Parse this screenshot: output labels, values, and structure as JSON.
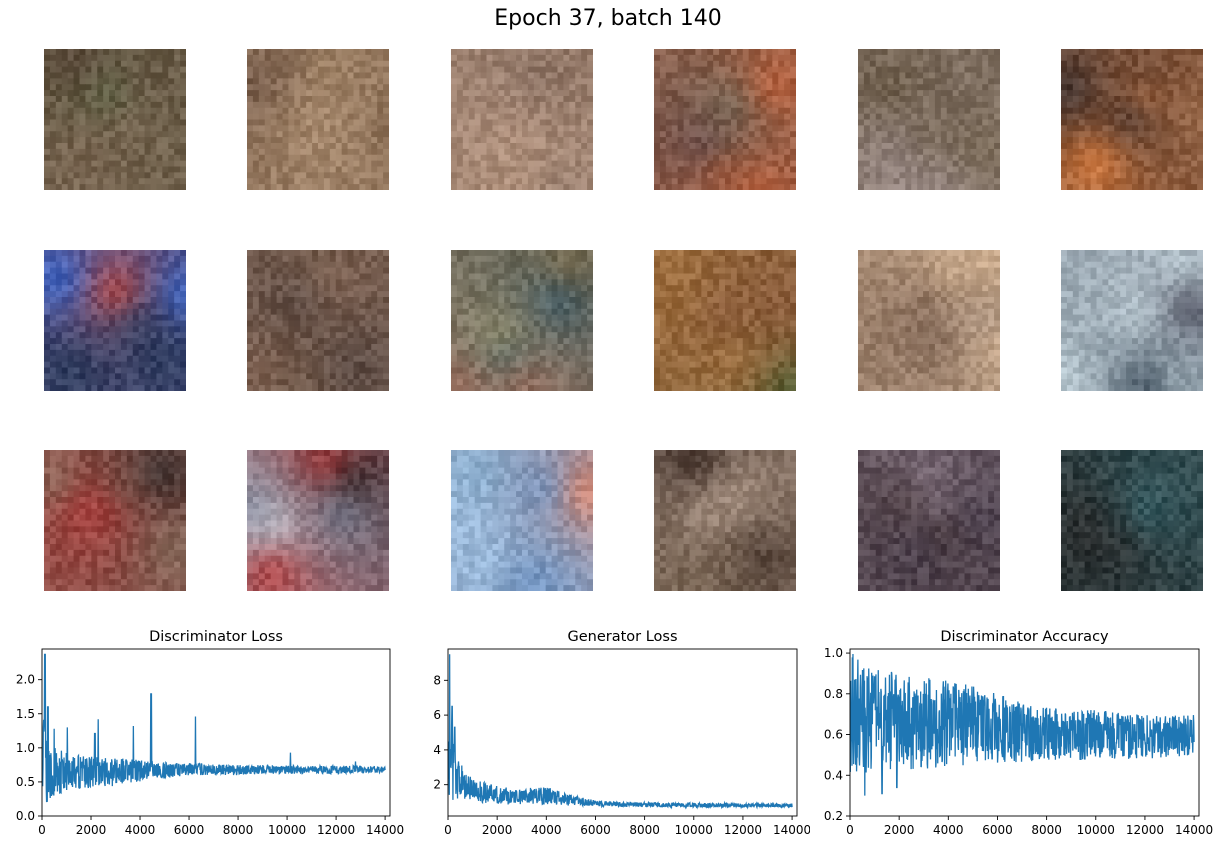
{
  "suptitle": "Epoch 37, batch 140",
  "samples": [
    {
      "colors": [
        "#6b5a48",
        "#7a6652",
        "#4f5a3a",
        "#5c4a3c"
      ]
    },
    {
      "colors": [
        "#8a6e55",
        "#a88a6e",
        "#6e5444",
        "#b89a78"
      ]
    },
    {
      "colors": [
        "#9a8070",
        "#b4947e",
        "#7e6658",
        "#a98a78"
      ]
    },
    {
      "colors": [
        "#6e6a5a",
        "#4e3a4a",
        "#c0603a",
        "#7c8a6a"
      ]
    },
    {
      "colors": [
        "#6a5a46",
        "#9a8a86",
        "#4a3a30",
        "#7a6a56"
      ]
    },
    {
      "colors": [
        "#c08a5a",
        "#3a3030",
        "#e08040",
        "#a07050"
      ]
    },
    {
      "colors": [
        "#3a6ad0",
        "#5a8ae0",
        "#2a3a5a",
        "#d04a3a"
      ]
    },
    {
      "colors": [
        "#6a5444",
        "#3a2a24",
        "#8a6a5a",
        "#5a4a44"
      ]
    },
    {
      "colors": [
        "#7a6a4a",
        "#3a5a6a",
        "#9a6a5a",
        "#b0a06a"
      ]
    },
    {
      "colors": [
        "#6a6a3a",
        "#8a5a3a",
        "#4a5a30",
        "#a07040"
      ]
    },
    {
      "colors": [
        "#b09a8a",
        "#7a6050",
        "#d0b090",
        "#5a4a3a"
      ]
    },
    {
      "colors": [
        "#1a2a3a",
        "#3a5a6a",
        "#c0d0d8",
        "#4a4a5a"
      ]
    },
    {
      "colors": [
        "#6a5044",
        "#b03a3a",
        "#2a2a2a",
        "#8a7060"
      ]
    },
    {
      "colors": [
        "#d8e0e8",
        "#b03030",
        "#1a1a1a",
        "#7a8aa0"
      ]
    },
    {
      "colors": [
        "#8ab0d0",
        "#a0c0e0",
        "#e08060",
        "#6a90c0"
      ]
    },
    {
      "colors": [
        "#7a6654",
        "#a08a78",
        "#3a2a24",
        "#b09a8a"
      ]
    },
    {
      "colors": [
        "#6a6070",
        "#4a4050",
        "#3a2a2a",
        "#8a7a88"
      ]
    },
    {
      "colors": [
        "#3a3a4a",
        "#4ab0c0",
        "#6a5a6a",
        "#2a2a2a"
      ]
    }
  ],
  "chart_data": [
    {
      "type": "line",
      "title": "Discriminator Loss",
      "color": "#1f77b4",
      "xlim": [
        0,
        14200
      ],
      "ylim": [
        0,
        2.45
      ],
      "xticks": [
        0,
        2000,
        4000,
        6000,
        8000,
        10000,
        12000,
        14000
      ],
      "yticks": [
        0.0,
        0.5,
        1.0,
        1.5,
        2.0
      ],
      "ytick_labels": [
        "0.0",
        "0.5",
        "1.0",
        "1.5",
        "2.0"
      ],
      "x": [
        0,
        80,
        150,
        250,
        400,
        600,
        900,
        1300,
        1800,
        2500,
        3200,
        4000,
        5000,
        6000,
        7000,
        8000,
        9000,
        10000,
        11000,
        12000,
        13000,
        14200
      ],
      "y_upper": [
        0.9,
        1.9,
        1.2,
        1.1,
        1.0,
        1.0,
        0.95,
        0.9,
        0.9,
        0.85,
        0.85,
        0.82,
        0.8,
        0.78,
        0.76,
        0.75,
        0.75,
        0.74,
        0.74,
        0.74,
        0.74,
        0.73
      ],
      "y_lower": [
        0.3,
        0.05,
        0.1,
        0.2,
        0.25,
        0.3,
        0.35,
        0.38,
        0.4,
        0.42,
        0.45,
        0.5,
        0.55,
        0.6,
        0.6,
        0.6,
        0.62,
        0.62,
        0.62,
        0.62,
        0.63,
        0.63
      ],
      "spikes": [
        [
          120,
          2.37
        ],
        [
          230,
          1.6
        ],
        [
          500,
          1.28
        ],
        [
          1000,
          1.3
        ],
        [
          1350,
          1.3
        ],
        [
          2150,
          1.22
        ],
        [
          2300,
          1.42
        ],
        [
          3700,
          1.32
        ],
        [
          4450,
          1.8
        ],
        [
          5000,
          1.0
        ],
        [
          6250,
          1.46
        ],
        [
          10100,
          0.93
        ],
        [
          12800,
          0.8
        ]
      ]
    },
    {
      "type": "line",
      "title": "Generator Loss",
      "color": "#1f77b4",
      "xlim": [
        0,
        14200
      ],
      "ylim": [
        0.2,
        9.8
      ],
      "xticks": [
        0,
        2000,
        4000,
        6000,
        8000,
        10000,
        12000,
        14000
      ],
      "yticks": [
        2,
        4,
        6,
        8
      ],
      "ytick_labels": [
        "2",
        "4",
        "6",
        "8"
      ],
      "x": [
        0,
        60,
        120,
        200,
        300,
        500,
        800,
        1200,
        1800,
        2500,
        3200,
        4000,
        5000,
        6000,
        7000,
        8000,
        9000,
        10000,
        11000,
        12000,
        13000,
        14200
      ],
      "y_upper": [
        3.0,
        9.5,
        7.0,
        5.0,
        4.2,
        3.2,
        2.6,
        2.3,
        2.0,
        1.8,
        1.8,
        1.9,
        1.4,
        1.1,
        1.0,
        1.0,
        0.95,
        0.95,
        0.95,
        0.92,
        0.92,
        0.92
      ],
      "y_lower": [
        0.6,
        0.9,
        1.0,
        1.1,
        1.2,
        1.2,
        1.1,
        1.0,
        0.9,
        0.85,
        0.85,
        0.85,
        0.8,
        0.75,
        0.72,
        0.7,
        0.7,
        0.7,
        0.7,
        0.7,
        0.7,
        0.7
      ],
      "spikes": [
        [
          80,
          9.5
        ],
        [
          170,
          6.5
        ],
        [
          280,
          5.3
        ],
        [
          550,
          3.1
        ],
        [
          4500,
          2.2
        ]
      ]
    },
    {
      "type": "line",
      "title": "Discriminator Accuracy",
      "color": "#1f77b4",
      "xlim": [
        0,
        14200
      ],
      "ylim": [
        0.2,
        1.02
      ],
      "xticks": [
        0,
        2000,
        4000,
        6000,
        8000,
        10000,
        12000,
        14000
      ],
      "yticks": [
        0.2,
        0.4,
        0.6,
        0.8,
        1.0
      ],
      "ytick_labels": [
        "0.2",
        "0.4",
        "0.6",
        "0.8",
        "1.0"
      ],
      "x": [
        0,
        100,
        300,
        600,
        1000,
        1500,
        2000,
        3000,
        4000,
        5000,
        6000,
        7000,
        8000,
        9000,
        10000,
        11000,
        12000,
        13000,
        14200
      ],
      "y_upper": [
        1.0,
        1.0,
        0.97,
        0.95,
        0.93,
        0.92,
        0.9,
        0.88,
        0.87,
        0.84,
        0.8,
        0.76,
        0.74,
        0.72,
        0.72,
        0.71,
        0.7,
        0.7,
        0.7
      ],
      "y_lower": [
        0.4,
        0.35,
        0.38,
        0.4,
        0.4,
        0.42,
        0.42,
        0.43,
        0.44,
        0.45,
        0.46,
        0.46,
        0.47,
        0.47,
        0.48,
        0.48,
        0.48,
        0.49,
        0.5
      ],
      "spikes_low": [
        [
          30,
          0.24
        ],
        [
          600,
          0.3
        ],
        [
          1300,
          0.31
        ],
        [
          1900,
          0.34
        ],
        [
          2600,
          0.36
        ]
      ]
    }
  ]
}
